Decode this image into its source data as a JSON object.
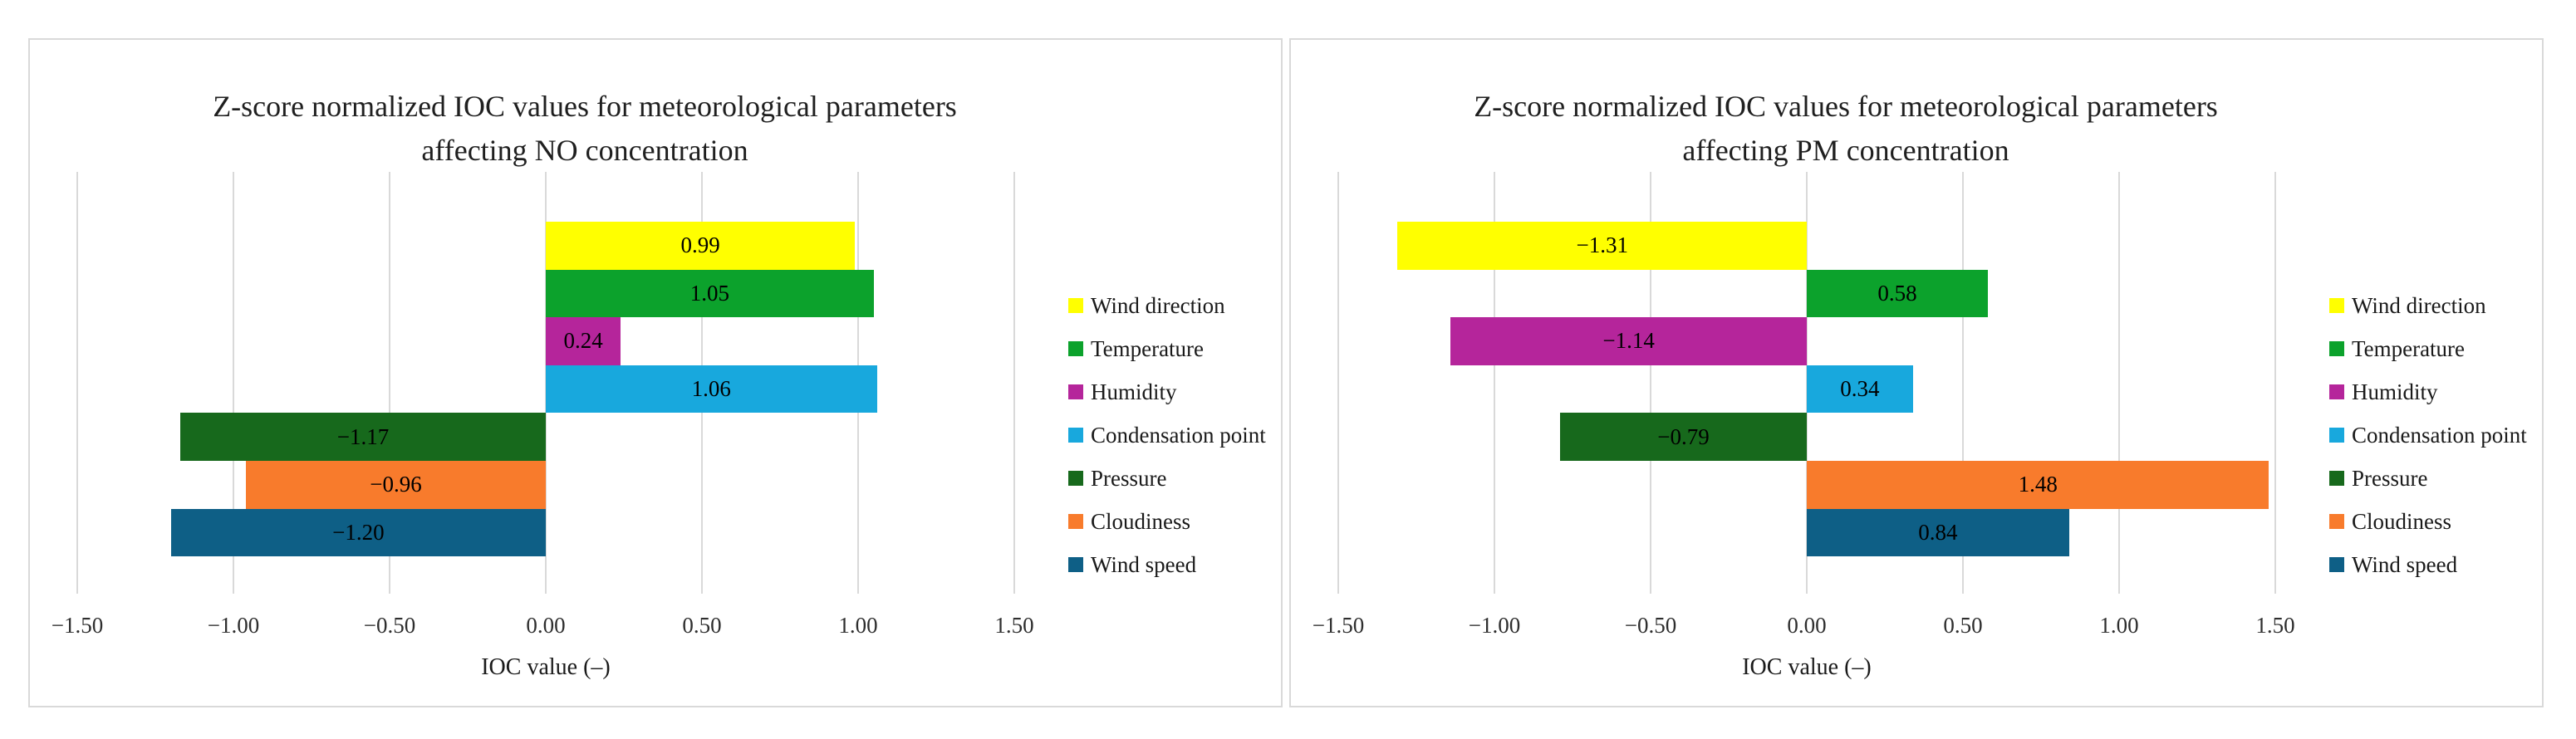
{
  "styles": {
    "background": "#ffffff",
    "panel_border_color": "#d9d9d9",
    "grid_color": "#d9d9d9",
    "title_color": "#1f1f1f",
    "label_color": "#000000"
  },
  "chart_data": [
    {
      "type": "bar",
      "orientation": "horizontal",
      "title_line1": "Z-score normalized IOC values for meteorological parameters",
      "title_line2": "affecting NO concentration",
      "xlabel": "IOC value (–)",
      "xlim": [
        -1.5,
        1.5
      ],
      "x_ticks": [
        -1.5,
        -1.0,
        -0.5,
        0.0,
        0.5,
        1.0,
        1.5
      ],
      "x_tick_labels": [
        "−1.50",
        "−1.00",
        "−0.50",
        "0.00",
        "0.50",
        "1.00",
        "1.50"
      ],
      "grid": true,
      "legend_position": "right",
      "categories": [
        "Wind direction",
        "Temperature",
        "Humidity",
        "Condensation point",
        "Pressure",
        "Cloudiness",
        "Wind speed"
      ],
      "values": [
        0.99,
        1.05,
        0.24,
        1.06,
        -1.17,
        -0.96,
        -1.2
      ],
      "value_labels": [
        "0.99",
        "1.05",
        "0.24",
        "1.06",
        "−1.17",
        "−0.96",
        "−1.20"
      ],
      "colors": [
        "#ffff00",
        "#0ca22c",
        "#b5259b",
        "#18a8dd",
        "#17691c",
        "#f87b2c",
        "#0e5f86"
      ]
    },
    {
      "type": "bar",
      "orientation": "horizontal",
      "title_line1": "Z-score normalized IOC values for meteorological parameters",
      "title_line2": "affecting PM concentration",
      "xlabel": "IOC value (–)",
      "xlim": [
        -1.5,
        1.5
      ],
      "x_ticks": [
        -1.5,
        -1.0,
        -0.5,
        0.0,
        0.5,
        1.0,
        1.5
      ],
      "x_tick_labels": [
        "−1.50",
        "−1.00",
        "−0.50",
        "0.00",
        "0.50",
        "1.00",
        "1.50"
      ],
      "grid": true,
      "legend_position": "right",
      "categories": [
        "Wind direction",
        "Temperature",
        "Humidity",
        "Condensation point",
        "Pressure",
        "Cloudiness",
        "Wind speed"
      ],
      "values": [
        -1.31,
        0.58,
        -1.14,
        0.34,
        -0.79,
        1.48,
        0.84
      ],
      "value_labels": [
        "−1.31",
        "0.58",
        "−1.14",
        "0.34",
        "−0.79",
        "1.48",
        "0.84"
      ],
      "colors": [
        "#ffff00",
        "#0ca22c",
        "#b5259b",
        "#18a8dd",
        "#17691c",
        "#f87b2c",
        "#0e5f86"
      ]
    }
  ]
}
